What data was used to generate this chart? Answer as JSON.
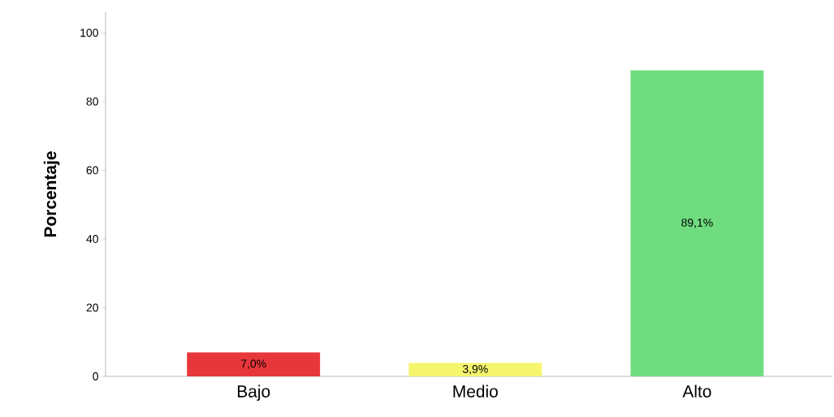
{
  "chart_data": {
    "type": "bar",
    "ylabel": "Porcentaje",
    "categories": [
      "Bajo",
      "Medio",
      "Alto"
    ],
    "values": [
      7.0,
      3.9,
      89.1
    ],
    "colors": [
      "#e8373a",
      "#f5f56e",
      "#70dc80"
    ],
    "value_labels": [
      "7,0%",
      "3,9%",
      "89,1%"
    ],
    "ylim": [
      0,
      106
    ],
    "yticks": [
      0,
      20,
      40,
      60,
      80,
      100
    ]
  }
}
